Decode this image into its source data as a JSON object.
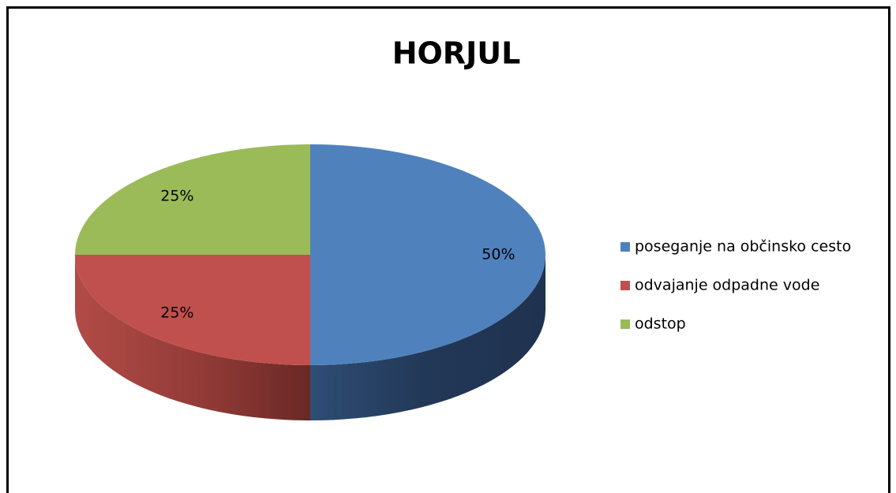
{
  "chart_data": {
    "type": "pie",
    "title": "HORJUL",
    "categories": [
      "poseganje na občinsko cesto",
      "odvajanje odpadne vode",
      "odstop"
    ],
    "values": [
      50,
      25,
      25
    ],
    "value_labels": [
      "50%",
      "25%",
      "25%"
    ],
    "colors": [
      "#4f81bd",
      "#c0504d",
      "#9bbb59"
    ],
    "legend": "right"
  }
}
